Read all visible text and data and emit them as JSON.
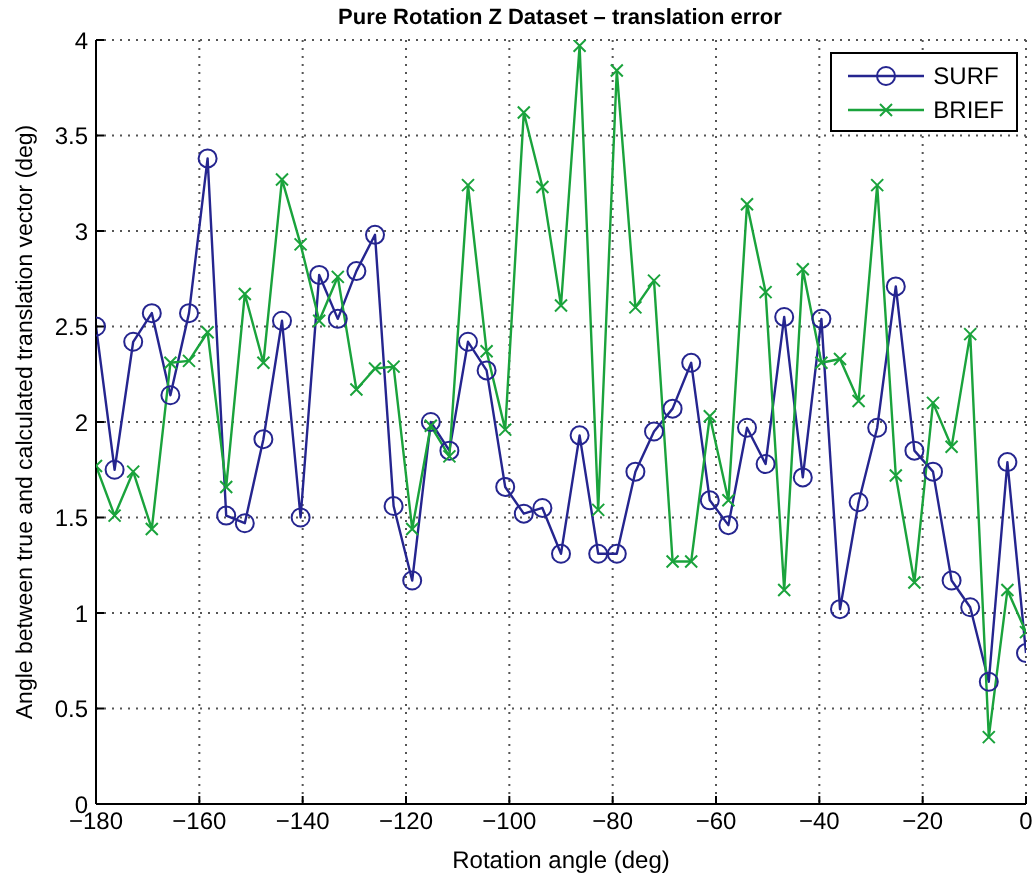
{
  "chart_data": {
    "type": "line",
    "title": "Pure Rotation Z Dataset – translation error",
    "xlabel": "Rotation angle (deg)",
    "ylabel": "Angle between true and calculated translation vector (deg)",
    "x": [
      -180,
      -176.4,
      -172.8,
      -169.2,
      -165.6,
      -162,
      -158.4,
      -154.8,
      -151.2,
      -147.6,
      -144,
      -140.4,
      -136.8,
      -133.2,
      -129.6,
      -126,
      -122.4,
      -118.8,
      -115.2,
      -111.6,
      -108,
      -104.4,
      -100.8,
      -97.2,
      -93.6,
      -90,
      -86.4,
      -82.8,
      -79.2,
      -75.6,
      -72,
      -68.4,
      -64.8,
      -61.2,
      -57.6,
      -54,
      -50.4,
      -46.8,
      -43.2,
      -39.6,
      -36,
      -32.4,
      -28.8,
      -25.2,
      -21.6,
      -18,
      -14.4,
      -10.8,
      -7.2,
      -3.6,
      0
    ],
    "series": [
      {
        "name": "SURF",
        "color": "#25258f",
        "marker": "circle",
        "values": [
          2.5,
          1.75,
          2.42,
          2.57,
          2.14,
          2.57,
          3.38,
          1.51,
          1.47,
          1.91,
          2.53,
          1.5,
          2.77,
          2.54,
          2.79,
          2.98,
          1.56,
          1.17,
          2.0,
          1.85,
          2.42,
          2.27,
          1.66,
          1.52,
          1.55,
          1.31,
          1.93,
          1.31,
          1.31,
          1.74,
          1.95,
          2.07,
          2.31,
          1.59,
          1.46,
          1.97,
          1.78,
          2.55,
          1.71,
          2.54,
          1.02,
          1.58,
          1.97,
          2.71,
          1.85,
          1.74,
          1.17,
          1.03,
          0.64,
          1.79,
          0.79
        ]
      },
      {
        "name": "BRIEF",
        "color": "#1aa33c",
        "marker": "cross",
        "values": [
          1.77,
          1.51,
          1.74,
          1.44,
          2.31,
          2.32,
          2.47,
          1.66,
          2.67,
          2.31,
          3.27,
          2.93,
          2.53,
          2.76,
          2.17,
          2.28,
          2.29,
          1.44,
          1.98,
          1.82,
          3.24,
          2.37,
          1.96,
          3.62,
          3.23,
          2.61,
          3.97,
          1.54,
          3.84,
          2.6,
          2.74,
          1.27,
          1.27,
          2.03,
          1.59,
          3.14,
          2.68,
          1.12,
          2.8,
          2.31,
          2.33,
          2.11,
          3.24,
          1.72,
          1.16,
          2.1,
          1.87,
          2.46,
          0.35,
          1.12,
          0.9
        ]
      }
    ],
    "xlim": [
      -180,
      0
    ],
    "xticks": [
      -180,
      -160,
      -140,
      -120,
      -100,
      -80,
      -60,
      -40,
      -20,
      0
    ],
    "ylim": [
      0,
      4
    ],
    "yticks": [
      0,
      0.5,
      1,
      1.5,
      2,
      2.5,
      3,
      3.5,
      4
    ],
    "grid": true,
    "legend": "top right",
    "line_style": "solid"
  }
}
